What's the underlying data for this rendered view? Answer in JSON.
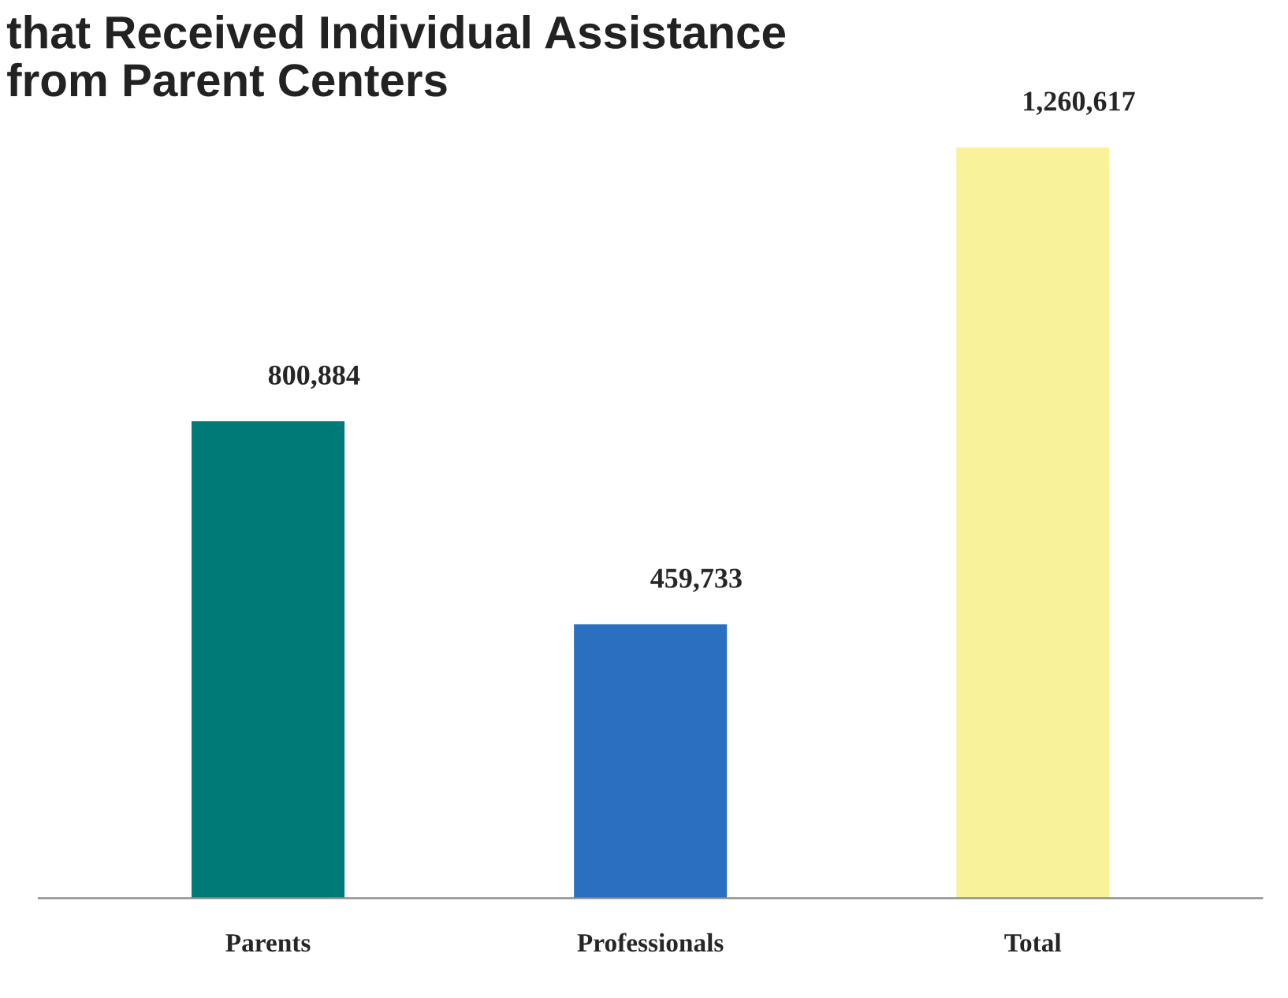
{
  "chart_data": {
    "type": "bar",
    "title": "that Received Individual Assistance\nfrom Parent Centers",
    "categories": [
      "Parents",
      "Professionals",
      "Total"
    ],
    "values": [
      800884,
      459733,
      1260617
    ],
    "colors": [
      "#007a76",
      "#2b70c0",
      "#f8f39b"
    ],
    "value_labels": [
      "800,884",
      "459,733",
      "1,260,617"
    ],
    "grid": false,
    "legend": false
  }
}
